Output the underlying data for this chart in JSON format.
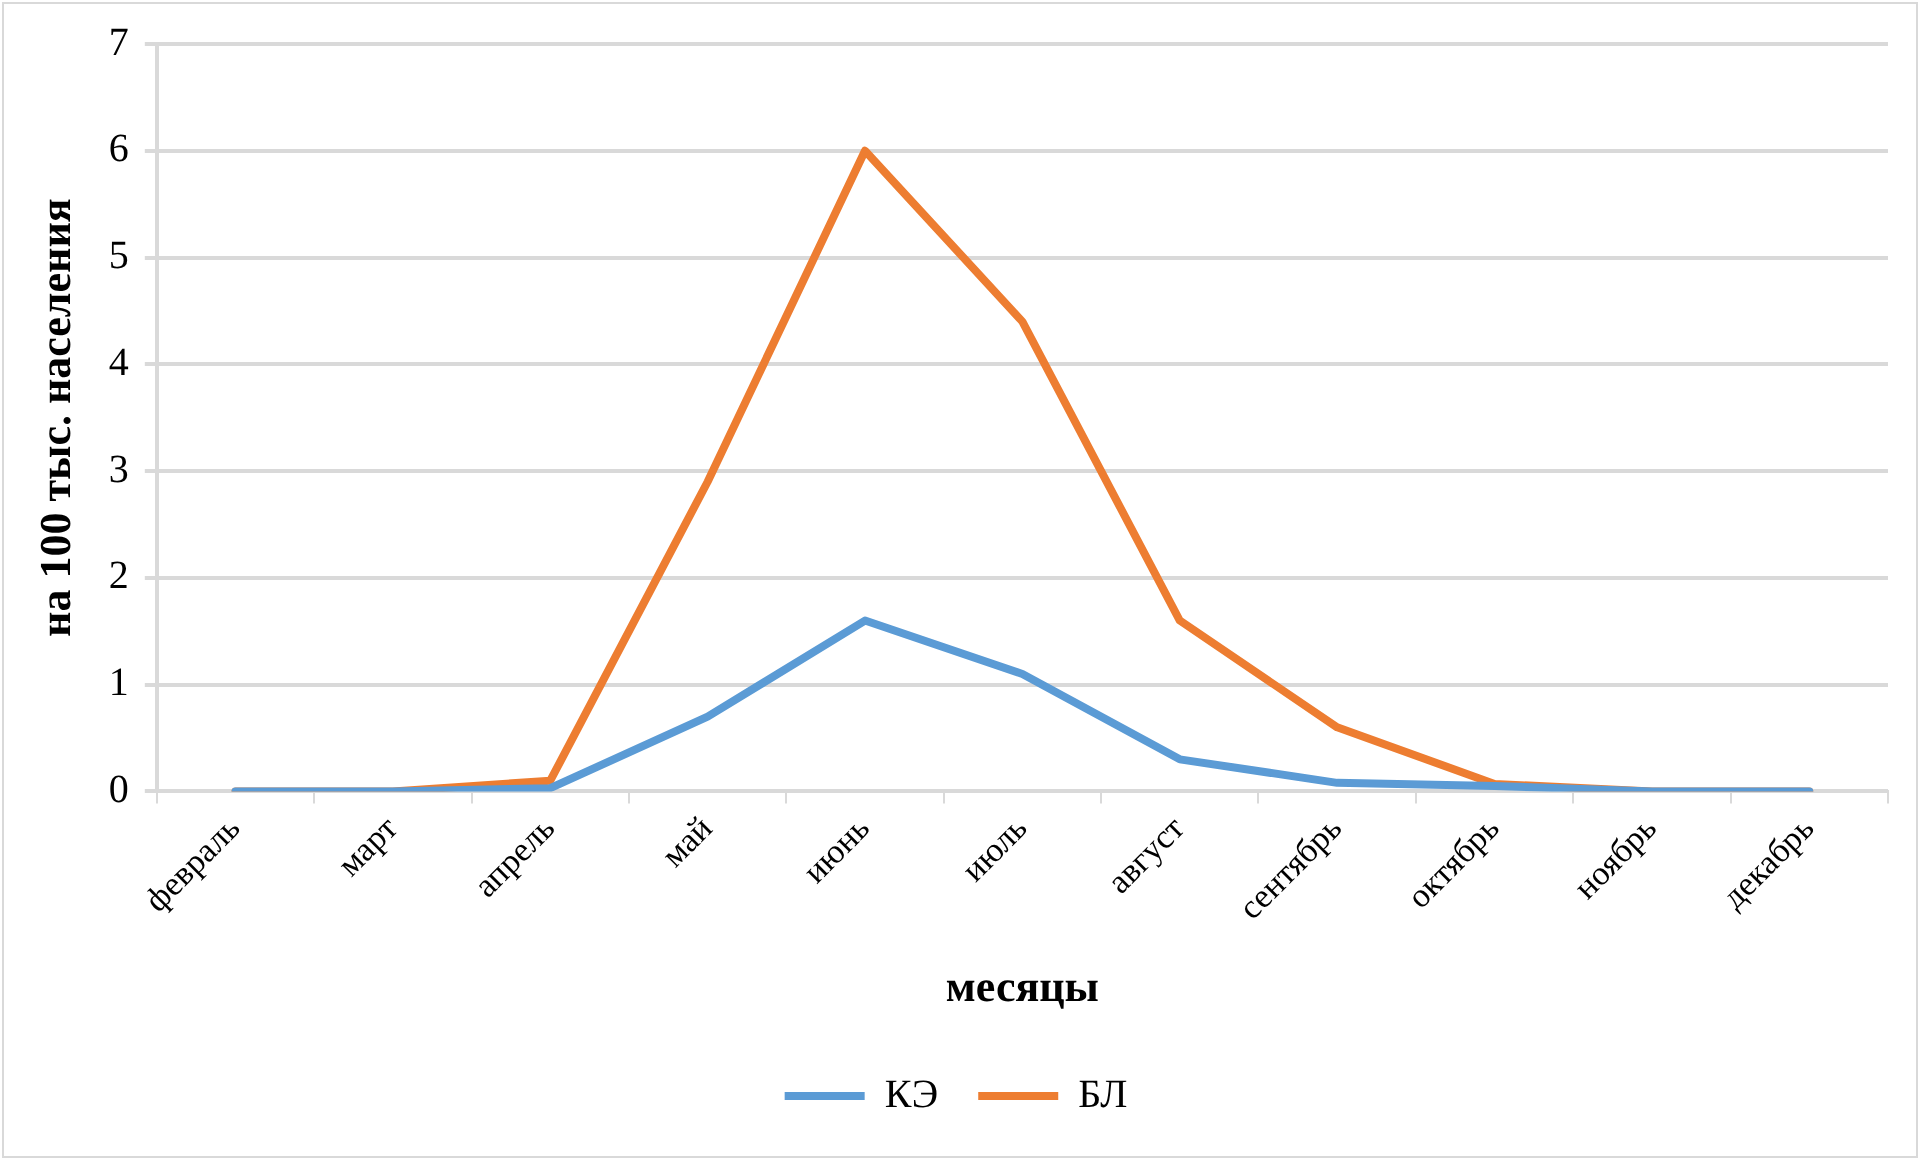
{
  "chart_data": {
    "type": "line",
    "xlabel": "месяцы",
    "ylabel": "на 100 тыс. населения",
    "categories": [
      "февраль",
      "март",
      "апрель",
      "май",
      "июнь",
      "июль",
      "август",
      "сентябрь",
      "октябрь",
      "ноябрь",
      "декабрь"
    ],
    "series": [
      {
        "name": "КЭ",
        "color": "#5b9bd5",
        "values": [
          0,
          0,
          0.03,
          0.7,
          1.6,
          1.1,
          0.3,
          0.08,
          0.05,
          0,
          0
        ]
      },
      {
        "name": "БЛ",
        "color": "#ed7d31",
        "values": [
          0,
          0,
          0.1,
          2.9,
          6.0,
          4.4,
          1.6,
          0.6,
          0.07,
          0,
          0
        ]
      }
    ],
    "ylim": [
      0,
      7
    ],
    "yticks": [
      0,
      1,
      2,
      3,
      4,
      5,
      6,
      7
    ],
    "grid": "y",
    "legend": "bottom",
    "marker": "none",
    "line_style": "solid"
  }
}
